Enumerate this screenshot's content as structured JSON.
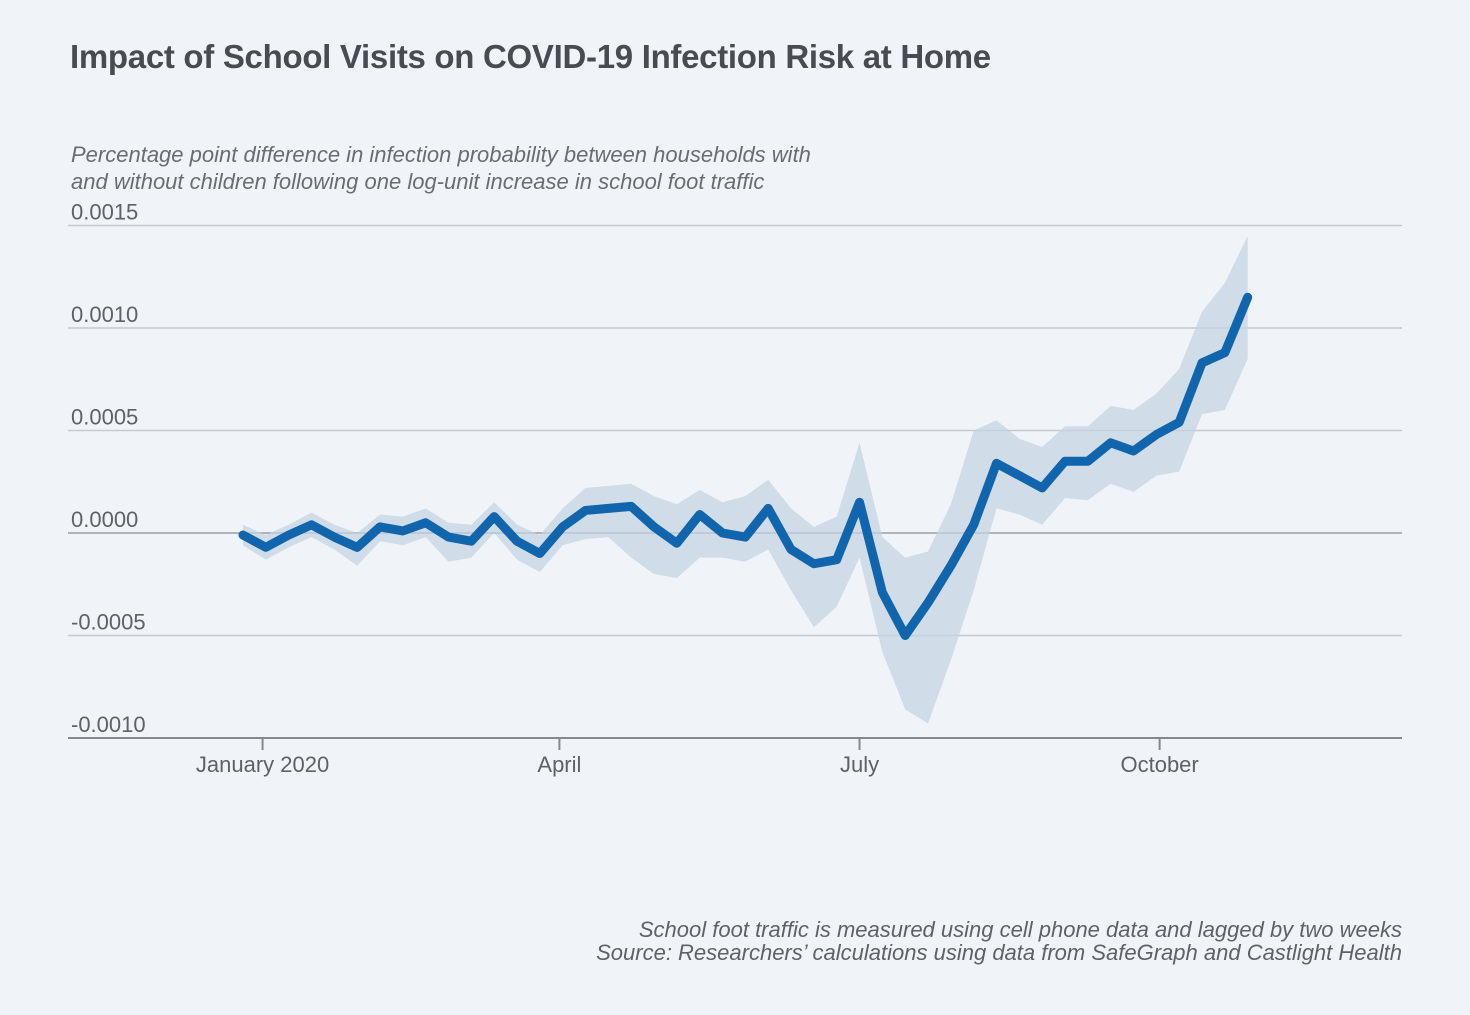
{
  "page": {
    "background": "#f0f4f8"
  },
  "header": {
    "title": "Impact of School Visits on COVID-19 Infection Risk at Home",
    "subtitle": "Percentage point difference in infection probability between households with\nand without children following one log-unit increase in school foot traffic"
  },
  "footer": {
    "note": "School foot traffic is measured using cell phone data and lagged by two weeks",
    "source": "Source: Researchers’ calculations using data from SafeGraph and Castlight Health"
  },
  "chart_data": {
    "type": "line",
    "title": "Impact of School Visits on COVID-19 Infection Risk at Home",
    "xlabel": "",
    "ylabel": "Percentage point difference in infection probability",
    "x_unit": "days since first weekly observation (early January to mid-November 2020)",
    "x": [
      0,
      7,
      14,
      21,
      28,
      35,
      42,
      49,
      56,
      63,
      70,
      77,
      84,
      91,
      98,
      105,
      112,
      119,
      126,
      133,
      140,
      147,
      154,
      161,
      168,
      175,
      182,
      189,
      196,
      203,
      210,
      217,
      224,
      231,
      238,
      245,
      252,
      259,
      266,
      273,
      280,
      287,
      294,
      301,
      308
    ],
    "series": [
      {
        "name": "Point estimate",
        "values": [
          -1e-05,
          -7e-05,
          -1e-05,
          4e-05,
          -2e-05,
          -7e-05,
          3e-05,
          1e-05,
          5e-05,
          -2e-05,
          -4e-05,
          8e-05,
          -4e-05,
          -0.0001,
          3e-05,
          0.00011,
          0.00012,
          0.00013,
          3e-05,
          -5e-05,
          9e-05,
          0.0,
          -2e-05,
          0.00012,
          -8e-05,
          -0.00015,
          -0.00013,
          0.00015,
          -0.00029,
          -0.0005,
          -0.00034,
          -0.00016,
          4e-05,
          0.00034,
          0.00028,
          0.00022,
          0.00035,
          0.00035,
          0.00044,
          0.0004,
          0.00048,
          0.00054,
          0.00083,
          0.00088,
          0.00115
        ]
      },
      {
        "name": "Confidence band upper",
        "values": [
          4e-05,
          -1e-05,
          4e-05,
          0.0001,
          4e-05,
          0.0,
          9e-05,
          8e-05,
          0.00012,
          5e-05,
          4e-05,
          0.00015,
          4e-05,
          -1e-05,
          0.00012,
          0.00022,
          0.00023,
          0.00024,
          0.00018,
          0.00014,
          0.00021,
          0.00015,
          0.00018,
          0.00026,
          0.00012,
          3e-05,
          8e-05,
          0.00044,
          -2e-05,
          -0.00012,
          -9e-05,
          0.00014,
          0.0005,
          0.00055,
          0.00046,
          0.00042,
          0.00052,
          0.00052,
          0.00062,
          0.0006,
          0.00068,
          0.0008,
          0.00108,
          0.00122,
          0.00145
        ]
      },
      {
        "name": "Confidence band lower",
        "values": [
          -6e-05,
          -0.00013,
          -7e-05,
          -2e-05,
          -8e-05,
          -0.00016,
          -4e-05,
          -6e-05,
          -2e-05,
          -0.00014,
          -0.00012,
          0.0,
          -0.00013,
          -0.00019,
          -6e-05,
          -3e-05,
          -2e-05,
          -0.00012,
          -0.0002,
          -0.00022,
          -0.00012,
          -0.00012,
          -0.00014,
          -8e-05,
          -0.00028,
          -0.00046,
          -0.00036,
          -0.00012,
          -0.00058,
          -0.00086,
          -0.00093,
          -0.00062,
          -0.00028,
          0.00012,
          9e-05,
          4e-05,
          0.00017,
          0.00016,
          0.00024,
          0.0002,
          0.00028,
          0.0003,
          0.00058,
          0.0006,
          0.00085
        ]
      }
    ],
    "x_ticks": [
      {
        "label": "January 2020",
        "day": 6
      },
      {
        "label": "April",
        "day": 97
      },
      {
        "label": "July",
        "day": 189
      },
      {
        "label": "October",
        "day": 281
      }
    ],
    "y_ticks": [
      {
        "label": "0.0015",
        "value": 0.0015
      },
      {
        "label": "0.0010",
        "value": 0.001
      },
      {
        "label": "0.0005",
        "value": 0.0005
      },
      {
        "label": "0.0000",
        "value": 0.0
      },
      {
        "label": "-0.0005",
        "value": -0.0005
      },
      {
        "label": "-0.0010",
        "value": -0.001
      }
    ],
    "ylim": [
      -0.001,
      0.0016
    ],
    "grid": true,
    "legend": false,
    "colors": {
      "line": "#1065ad",
      "band": "#c3d3e2",
      "grid": "#c6cacd",
      "zero_line": "#9b9fa3",
      "axis": "#85898e",
      "tick_label": "#5d6268"
    }
  }
}
